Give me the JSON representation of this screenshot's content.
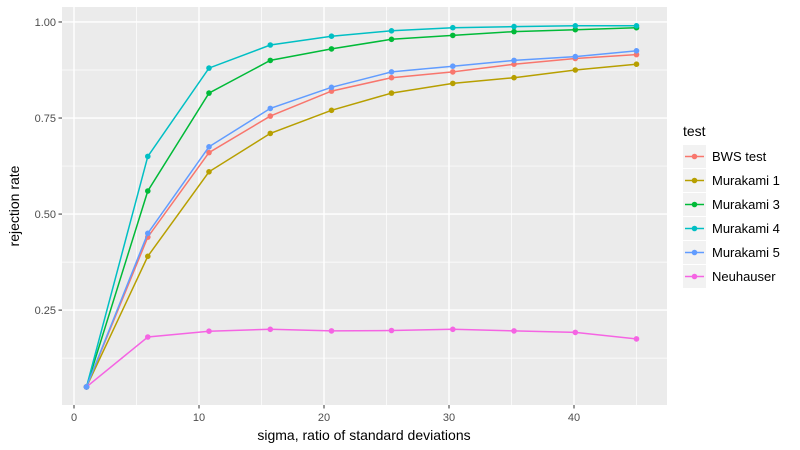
{
  "chart_data": {
    "type": "line",
    "title": "",
    "xlabel": "sigma, ratio of standard deviations",
    "ylabel": "rejection rate",
    "legend_title": "test",
    "legend_position": "right",
    "grid": true,
    "x": [
      1,
      5.9,
      10.8,
      15.7,
      20.6,
      25.4,
      30.3,
      35.2,
      40.1,
      45
    ],
    "series": [
      {
        "name": "BWS test",
        "color": "#F8766D",
        "values": [
          0.05,
          0.44,
          0.66,
          0.755,
          0.82,
          0.855,
          0.87,
          0.89,
          0.905,
          0.915
        ]
      },
      {
        "name": "Murakami 1",
        "color": "#B79F00",
        "values": [
          0.05,
          0.39,
          0.61,
          0.71,
          0.77,
          0.815,
          0.84,
          0.855,
          0.875,
          0.89
        ]
      },
      {
        "name": "Murakami 3",
        "color": "#00BA38",
        "values": [
          0.05,
          0.56,
          0.815,
          0.9,
          0.93,
          0.955,
          0.965,
          0.975,
          0.98,
          0.985
        ]
      },
      {
        "name": "Murakami 4",
        "color": "#00BFC4",
        "values": [
          0.05,
          0.65,
          0.88,
          0.94,
          0.963,
          0.977,
          0.985,
          0.988,
          0.99,
          0.99
        ]
      },
      {
        "name": "Murakami 5",
        "color": "#619CFF",
        "values": [
          0.05,
          0.45,
          0.675,
          0.775,
          0.83,
          0.87,
          0.885,
          0.9,
          0.91,
          0.925
        ]
      },
      {
        "name": "Neuhauser",
        "color": "#F564E3",
        "values": [
          0.05,
          0.18,
          0.195,
          0.2,
          0.196,
          0.197,
          0.2,
          0.196,
          0.192,
          0.175
        ]
      }
    ],
    "x_ticks": {
      "values": [
        0,
        10,
        20,
        30,
        40
      ],
      "labels": [
        "0",
        "10",
        "20",
        "30",
        "40"
      ]
    },
    "x_minor_ticks": [
      5,
      15,
      25,
      35,
      45
    ],
    "y_ticks": {
      "values": [
        0.25,
        0.5,
        0.75,
        1.0
      ],
      "labels": [
        "0.25",
        "0.50",
        "0.75",
        "1.00"
      ]
    },
    "y_minor_ticks": [
      0.125,
      0.375,
      0.625,
      0.875
    ],
    "xlim": [
      -0.96,
      47.44
    ],
    "ylim": [
      0.003,
      1.039
    ],
    "colors": {
      "panel_bg": "#EBEBEB",
      "grid": "#FFFFFF",
      "tick_mark": "#333333",
      "tick_text": "#4D4D4D",
      "title_text": "#000000",
      "legend_key_bg": "#F2F2F2"
    }
  }
}
